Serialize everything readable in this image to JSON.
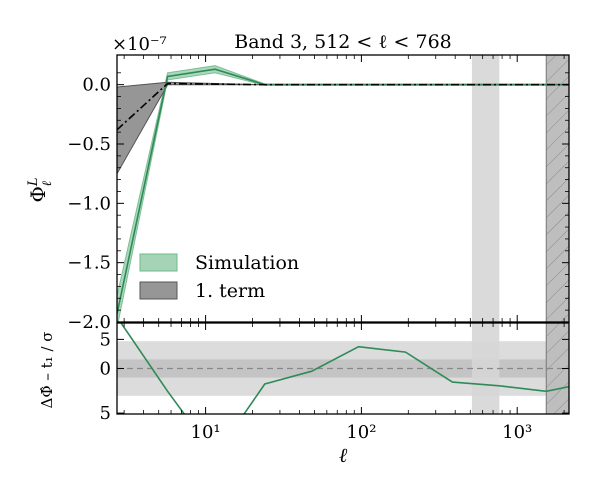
{
  "chart_data": {
    "type": "line",
    "title": "Band 3, 512 < ℓ < 768",
    "xlabel": "ℓ",
    "xscale": "log",
    "xlim": [
      2.7,
      2150
    ],
    "shaded_bands": {
      "band_range": [
        512,
        768
      ],
      "excluded_from": 1536,
      "colors": {
        "band": "#d6d6d6",
        "excluded": "#bebebe"
      }
    },
    "top_panel": {
      "ylabel": "Φ",
      "ylabel_sup": "L",
      "ylabel_sub": "ℓ",
      "offset_text": "×10⁻⁷",
      "ylim": [
        -2.0,
        0.25
      ],
      "yticks": [
        0.0,
        -0.5,
        -1.0,
        -1.5,
        -2.0
      ],
      "ytick_labels": [
        "0.0",
        "−0.5",
        "−1.0",
        "−1.5",
        "−2.0"
      ],
      "xticks": [
        10,
        100,
        1000
      ],
      "xtick_labels": [
        "10¹",
        "10²",
        "10³"
      ],
      "legend": {
        "position": "lower-left",
        "entries": [
          {
            "label": "Simulation",
            "color": "#a4d3b6",
            "edge": "#6fb98a"
          },
          {
            "label": "1. term",
            "color": "#969696",
            "edge": "#555555"
          }
        ]
      },
      "series": [
        {
          "name": "Simulation",
          "color": "#2e8b57",
          "band_color": "#a4d3b6",
          "x": [
            2.7,
            5.7,
            11.5,
            24,
            48,
            96,
            192,
            384,
            768,
            1536,
            2150
          ],
          "y": [
            -1.93,
            0.07,
            0.13,
            0.0,
            0.0,
            0.0,
            0.0,
            0.0,
            0.0,
            0.0,
            0.0
          ],
          "y_low": [
            -2.05,
            0.04,
            0.1,
            -0.005,
            -0.005,
            -0.005,
            -0.005,
            -0.005,
            -0.005,
            -0.005,
            -0.005
          ],
          "y_high": [
            -1.78,
            0.1,
            0.16,
            0.006,
            0.006,
            0.006,
            0.006,
            0.006,
            0.006,
            0.006,
            0.006
          ]
        },
        {
          "name": "1. term",
          "color": "#000000",
          "band_color": "#969696",
          "x": [
            2.7,
            5.7,
            11.5,
            24,
            48,
            96,
            192,
            384,
            768,
            1536,
            2150
          ],
          "y": [
            -0.38,
            0.01,
            0.005,
            0.0,
            0.0,
            0.0,
            0.0,
            0.0,
            0.0,
            0.0,
            0.0
          ],
          "y_low": [
            -0.75,
            0.0,
            0.0,
            0.0,
            0.0,
            0.0,
            0.0,
            0.0,
            0.0,
            0.0,
            0.0
          ],
          "y_high": [
            -0.02,
            0.02,
            0.01,
            0.0,
            0.0,
            0.0,
            0.0,
            0.0,
            0.0,
            0.0,
            0.0
          ]
        }
      ]
    },
    "bottom_panel": {
      "ylabel": "ΔΦ̂ – t₁ / σ",
      "ylim": [
        -5,
        5
      ],
      "yticks": [
        5,
        0
      ],
      "ytick_labels": [
        "5",
        "0"
      ],
      "top_tick_label": "5",
      "sigma_bands": [
        {
          "range": [
            -3,
            3
          ],
          "color": "#dcdcdc"
        },
        {
          "range": [
            -1,
            1
          ],
          "color": "#c4c4c4"
        }
      ],
      "zero_line": {
        "y": 0,
        "style": "dashed",
        "color": "#888888"
      },
      "series": [
        {
          "name": "residual",
          "color": "#2e8b57",
          "x": [
            2.5,
            5.7,
            11.5,
            24,
            48,
            96,
            192,
            384,
            768,
            1536,
            2150
          ],
          "y": [
            6.5,
            -2.5,
            -9.6,
            -1.7,
            -0.3,
            2.4,
            1.8,
            -1.5,
            -1.9,
            -2.5,
            -2.0
          ]
        }
      ]
    }
  }
}
